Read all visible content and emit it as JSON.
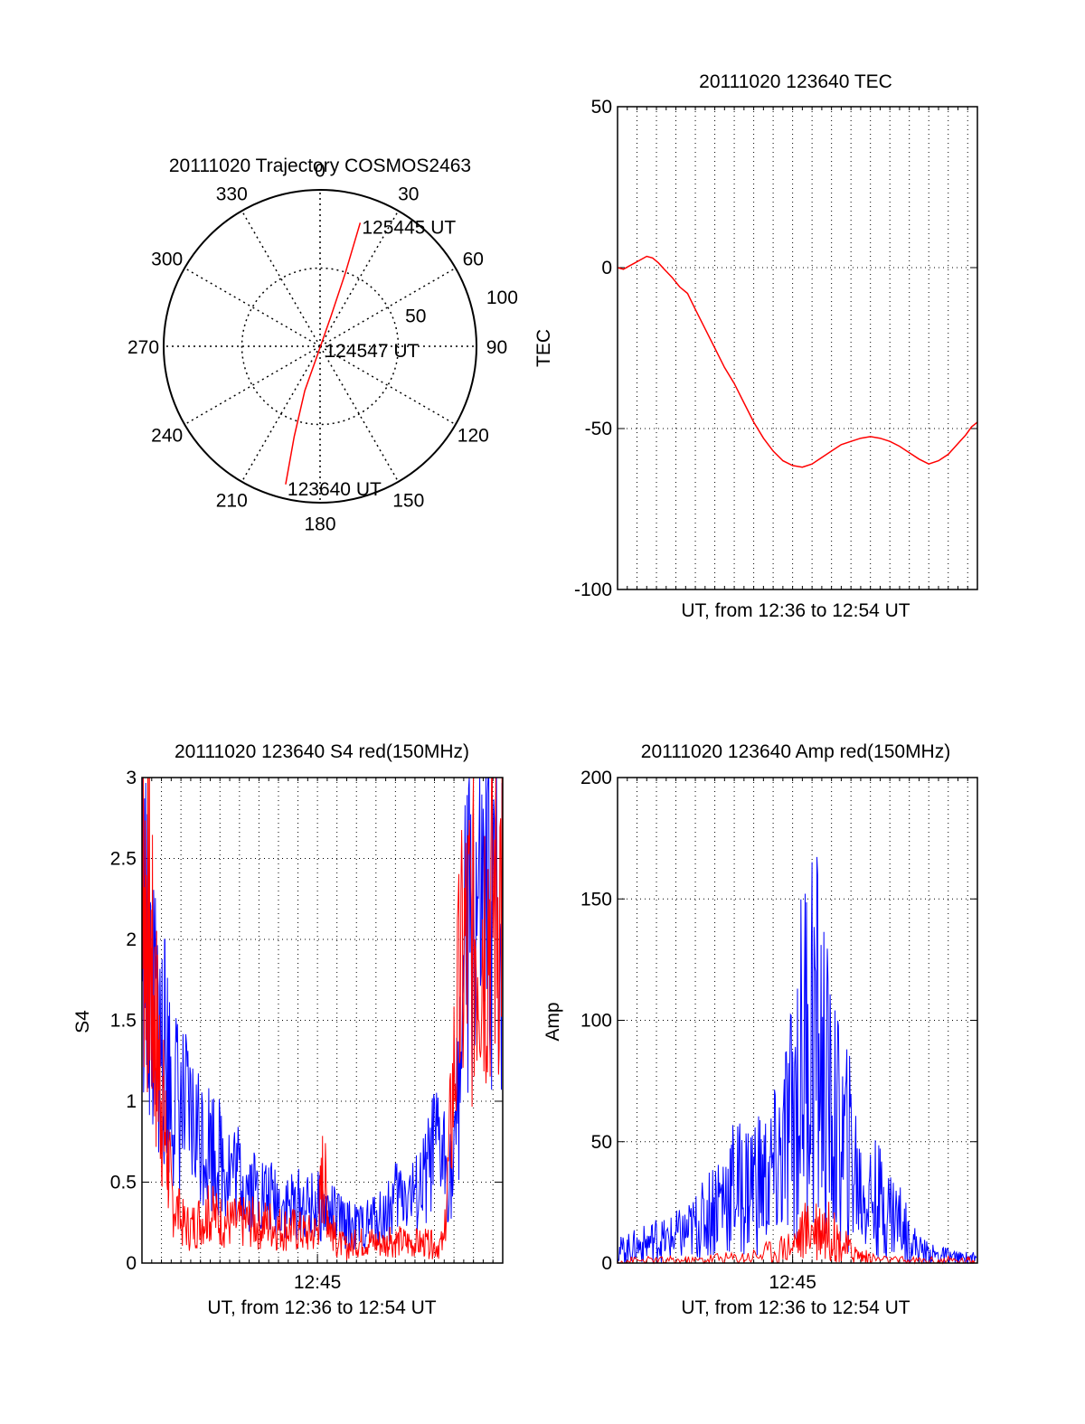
{
  "colors": {
    "red": "#ff0000",
    "blue": "#0000ff",
    "axis": "#000000",
    "grid": "#000000",
    "background": "#ffffff"
  },
  "chart_data": [
    {
      "id": "trajectory",
      "type": "polar",
      "title": "20111020 Trajectory COSMOS2463",
      "angle_labels": [
        {
          "deg": 0,
          "label": "0"
        },
        {
          "deg": 30,
          "label": "30"
        },
        {
          "deg": 60,
          "label": "60"
        },
        {
          "deg": 90,
          "label": "90"
        },
        {
          "deg": 120,
          "label": "120"
        },
        {
          "deg": 150,
          "label": "150"
        },
        {
          "deg": 180,
          "label": "180"
        },
        {
          "deg": 210,
          "label": "210"
        },
        {
          "deg": 240,
          "label": "240"
        },
        {
          "deg": 270,
          "label": "270"
        },
        {
          "deg": 300,
          "label": "300"
        },
        {
          "deg": 330,
          "label": "330"
        }
      ],
      "radial_labels": [
        {
          "r": 50,
          "label": "50"
        },
        {
          "r": 100,
          "label": "100"
        }
      ],
      "rmax": 100,
      "grid": true,
      "track": {
        "color": "red",
        "points": [
          {
            "az": 194,
            "r": 91
          },
          {
            "az": 196,
            "r": 60
          },
          {
            "az": 199,
            "r": 30
          },
          {
            "az": 197,
            "r": 6
          },
          {
            "az": 20,
            "r": 20
          },
          {
            "az": 19,
            "r": 50
          },
          {
            "az": 18,
            "r": 83
          }
        ]
      },
      "annotations": [
        {
          "text": "125445 UT",
          "az": 18,
          "r": 83
        },
        {
          "text": "124547 UT",
          "az": 90,
          "r": 2
        },
        {
          "text": "123640 UT",
          "az": 194,
          "r": 91
        }
      ]
    },
    {
      "id": "tec",
      "type": "line",
      "title": "20111020 123640 TEC",
      "ylabel": "TEC",
      "xlabel": "UT, from 12:36 to 12:54 UT",
      "xlim": [
        0,
        18.5
      ],
      "ylim": [
        -100,
        50
      ],
      "yticks": [
        "50",
        "0",
        "-50",
        "-100"
      ],
      "ytick_values": [
        50,
        0,
        -50,
        -100
      ],
      "grid": true,
      "series": [
        {
          "color": "red",
          "x": [
            0.0,
            0.3,
            0.6,
            0.9,
            1.2,
            1.5,
            1.8,
            2.1,
            2.4,
            2.8,
            3.2,
            3.6,
            4.0,
            4.5,
            5.0,
            5.5,
            6.0,
            6.5,
            7.0,
            7.5,
            8.0,
            8.5,
            9.0,
            9.5,
            10.0,
            10.5,
            11.0,
            11.5,
            12.0,
            12.5,
            13.0,
            13.5,
            14.0,
            14.5,
            15.0,
            15.5,
            16.0,
            16.5,
            17.0,
            17.3,
            17.6,
            17.9,
            18.2,
            18.5
          ],
          "y": [
            0,
            -0.5,
            0.5,
            1.5,
            2.5,
            3.5,
            3,
            1.5,
            -0.5,
            -3,
            -6,
            -8,
            -13,
            -19,
            -25,
            -31,
            -36,
            -42,
            -48,
            -53,
            -57,
            -60,
            -61.5,
            -62,
            -61,
            -59,
            -57,
            -55,
            -54,
            -53,
            -52.5,
            -53,
            -54,
            -55.5,
            -57.5,
            -59.5,
            -61,
            -60,
            -58,
            -56,
            -54,
            -52,
            -49.5,
            -48
          ]
        }
      ]
    },
    {
      "id": "s4",
      "type": "line",
      "title": "20111020 123640 S4 red(150MHz)",
      "ylabel": "S4",
      "xlabel": "UT, from 12:36 to 12:54 UT",
      "xtick_label": "12:45",
      "xtick_value": 9,
      "xlim": [
        0,
        18.5
      ],
      "ylim": [
        0,
        3
      ],
      "yticks": [
        "3",
        "2.5",
        "2",
        "1.5",
        "1",
        "0.5",
        "0"
      ],
      "ytick_values": [
        3,
        2.5,
        2,
        1.5,
        1,
        0.5,
        0
      ],
      "grid": true,
      "series": [
        {
          "color": "blue",
          "x": [
            0,
            0.3,
            0.6,
            0.9,
            1.2,
            1.5,
            2,
            2.5,
            3,
            3.5,
            4,
            4.5,
            5,
            5.5,
            6,
            6.5,
            7,
            7.5,
            8,
            8.5,
            9,
            9.5,
            10,
            10.5,
            11,
            11.5,
            12,
            12.5,
            13,
            13.5,
            14,
            14.5,
            15,
            15.5,
            16,
            16.5,
            17,
            17.5,
            18,
            18.5
          ],
          "y": [
            2.3,
            1.8,
            1.5,
            1.4,
            1.3,
            1.1,
            0.95,
            0.85,
            0.8,
            0.75,
            0.65,
            0.6,
            0.55,
            0.48,
            0.45,
            0.4,
            0.38,
            0.35,
            0.36,
            0.34,
            0.35,
            0.32,
            0.28,
            0.24,
            0.22,
            0.23,
            0.28,
            0.3,
            0.4,
            0.45,
            0.4,
            0.5,
            0.7,
            0.65,
            0.55,
            1.8,
            2.1,
            2.0,
            2.2,
            2.1
          ]
        },
        {
          "color": "red",
          "x": [
            0,
            0.3,
            0.6,
            0.9,
            1.2,
            1.5,
            2,
            2.5,
            3,
            3.5,
            4,
            4.5,
            5,
            5.5,
            6,
            6.5,
            7,
            7.5,
            8,
            8.5,
            9,
            9.3,
            9.6,
            10,
            10.5,
            11,
            11.5,
            12,
            12.5,
            13,
            13.5,
            14,
            14.5,
            15,
            15.5,
            16,
            16.5,
            17,
            17.5,
            18,
            18.5
          ],
          "y": [
            2.5,
            2.2,
            1.6,
            1.2,
            0.8,
            0.45,
            0.25,
            0.22,
            0.28,
            0.3,
            0.27,
            0.25,
            0.25,
            0.26,
            0.24,
            0.25,
            0.22,
            0.22,
            0.2,
            0.18,
            0.2,
            0.6,
            0.25,
            0.12,
            0.1,
            0.12,
            0.14,
            0.13,
            0.12,
            0.14,
            0.13,
            0.12,
            0.12,
            0.11,
            0.12,
            1.2,
            1.9,
            2.1,
            2.2,
            2.3,
            2.4
          ]
        }
      ]
    },
    {
      "id": "amp",
      "type": "line",
      "title": "20111020 123640 Amp red(150MHz)",
      "ylabel": "Amp",
      "xlabel": "UT, from 12:36 to 12:54 UT",
      "xtick_label": "12:45",
      "xtick_value": 9,
      "xlim": [
        0,
        18.5
      ],
      "ylim": [
        0,
        200
      ],
      "yticks": [
        "200",
        "150",
        "100",
        "50",
        "0"
      ],
      "ytick_values": [
        200,
        150,
        100,
        50,
        0
      ],
      "grid": true,
      "series": [
        {
          "color": "blue",
          "x": [
            0,
            0.5,
            1,
            1.5,
            2,
            2.5,
            3,
            3.5,
            4,
            4.5,
            5,
            5.5,
            6,
            6.5,
            7,
            7.5,
            8,
            8.5,
            9,
            9.5,
            10,
            10.5,
            11,
            11.5,
            12,
            12.5,
            13,
            13.5,
            14,
            14.5,
            15,
            15.5,
            16,
            16.5,
            17,
            17.5,
            18,
            18.5
          ],
          "y": [
            5,
            6,
            7,
            8,
            10,
            9,
            11,
            12,
            15,
            18,
            25,
            28,
            32,
            30,
            35,
            33,
            36,
            45,
            60,
            85,
            100,
            80,
            60,
            50,
            45,
            30,
            28,
            25,
            22,
            18,
            10,
            6,
            4,
            3,
            3,
            2,
            2,
            2
          ]
        },
        {
          "color": "red",
          "x": [
            0,
            1,
            2,
            3,
            4,
            5,
            6,
            7,
            8,
            9,
            9.5,
            10,
            10.5,
            11,
            11.5,
            12,
            12.5,
            13,
            14,
            15,
            16,
            17,
            18,
            18.5
          ],
          "y": [
            1,
            1,
            1,
            1,
            1,
            2,
            2,
            3,
            5,
            8,
            12,
            15,
            16,
            12,
            8,
            5,
            3,
            2,
            1,
            1,
            1,
            1,
            1,
            1
          ]
        }
      ]
    }
  ]
}
